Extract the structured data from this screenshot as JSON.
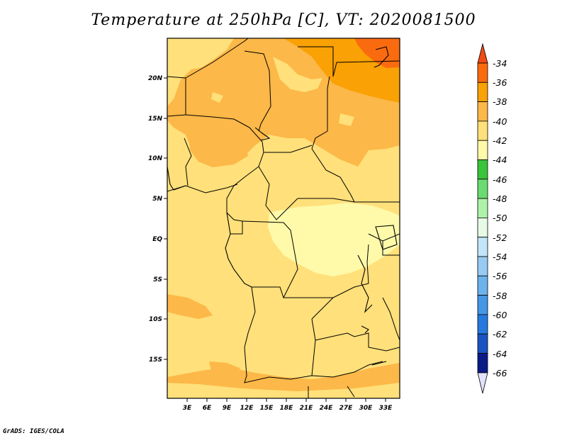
{
  "title": "Temperature at 250hPa [C], VT: 2020081500",
  "footer": "GrADS: IGES/COLA",
  "map": {
    "lat_labels": [
      "20N",
      "15N",
      "10N",
      "5N",
      "EQ",
      "5S",
      "10S",
      "15S"
    ],
    "lon_labels": [
      "3E",
      "6E",
      "9E",
      "12E",
      "15E",
      "18E",
      "21E",
      "24E",
      "27E",
      "30E",
      "33E"
    ]
  },
  "colorbar": {
    "labels": [
      "-34",
      "-36",
      "-38",
      "-40",
      "-42",
      "-44",
      "-46",
      "-48",
      "-50",
      "-52",
      "-54",
      "-56",
      "-58",
      "-60",
      "-62",
      "-64",
      "-66"
    ],
    "colors": {
      "gt_-34": "#f04a15",
      "-36_-34": "#fa6b0f",
      "-38_-36": "#f9a105",
      "-40_-38": "#fcb848",
      "-42_-40": "#ffe07a",
      "-44_-42": "#fffaa9",
      "-46_-44": "#38c43b",
      "-48_-46": "#6adb70",
      "-50_-48": "#aef2aa",
      "-52_-50": "#e6fae6",
      "-54_-52": "#c2e5f8",
      "-56_-54": "#98cbf2",
      "-58_-56": "#6cb3ec",
      "-60_-58": "#4696e6",
      "-62_-60": "#2779e0",
      "-64_-62": "#1a53c2",
      "-66_-64": "#0a1a86",
      "lt_-66": "#e2e2ff"
    }
  }
}
